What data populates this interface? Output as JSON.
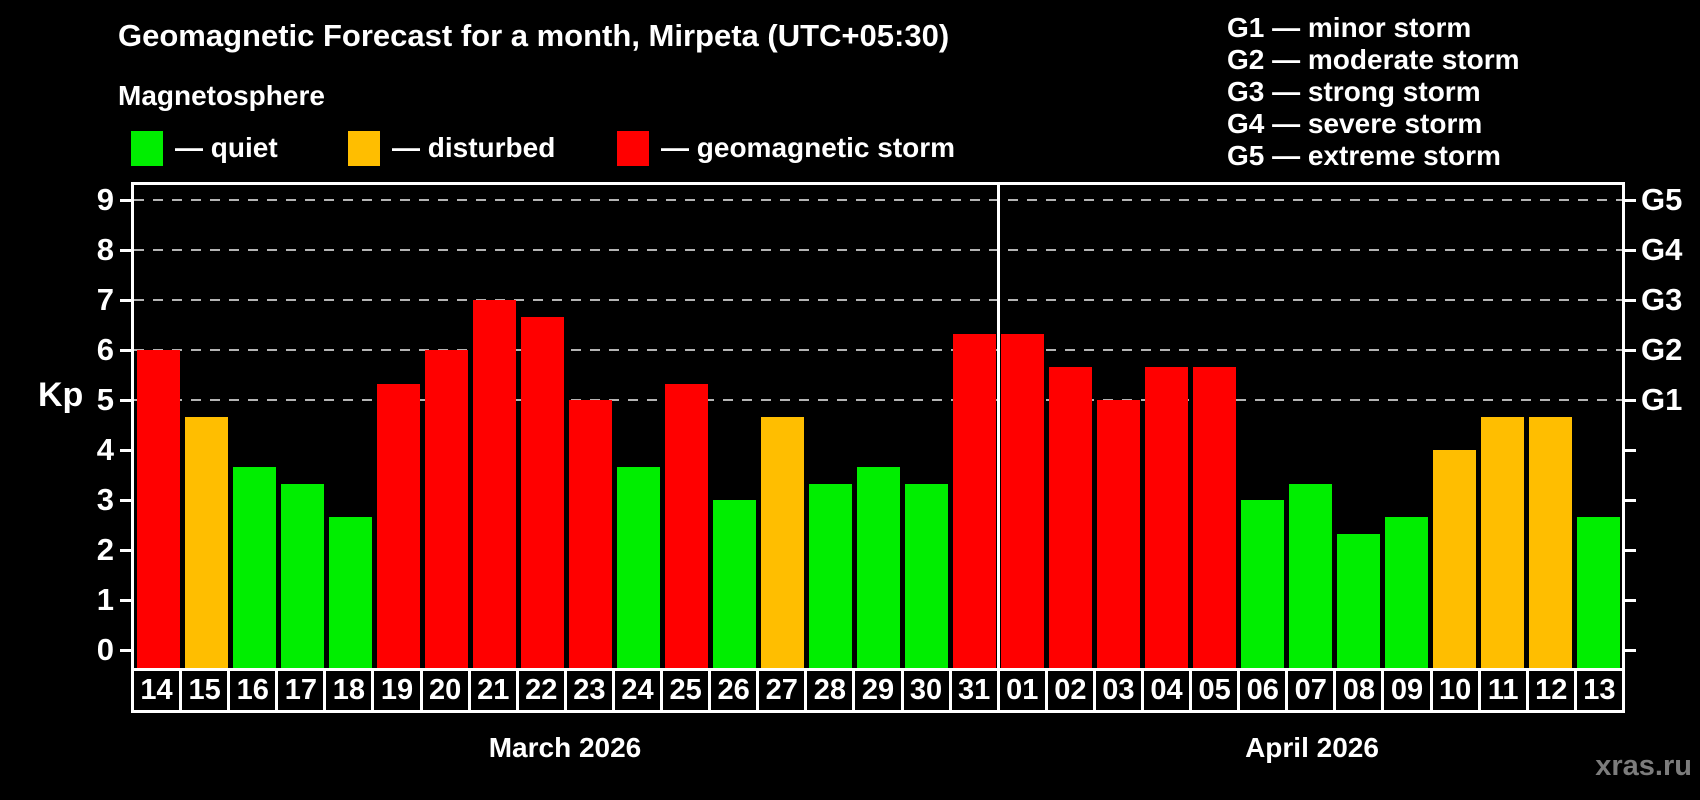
{
  "header": {
    "title": "Geomagnetic Forecast for a month, Mirpeta (UTC+05:30)",
    "subtitle": "Magnetosphere"
  },
  "legend": {
    "items": [
      {
        "label": "— quiet",
        "status": "quiet"
      },
      {
        "label": "— disturbed",
        "status": "disturbed"
      },
      {
        "label": "— geomagnetic storm",
        "status": "storm"
      }
    ]
  },
  "g_scale_legend": {
    "lines": [
      "G1 — minor storm",
      "G2 — moderate storm",
      "G3 — strong storm",
      "G4 — severe storm",
      "G5 — extreme storm"
    ]
  },
  "colors": {
    "quiet": "#00ee00",
    "disturbed": "#ffbe00",
    "storm": "#ff0000",
    "grid": "#b4b4b4",
    "frame": "#ffffff",
    "watermark": "#7c7c7c"
  },
  "chart_data": {
    "type": "bar",
    "ylabel": "Kp",
    "y_ticks": [
      0,
      1,
      2,
      3,
      4,
      5,
      6,
      7,
      8,
      9
    ],
    "ylim": [
      -0.36,
      9.36
    ],
    "gridlines_at_kp": [
      5,
      6,
      7,
      8,
      9
    ],
    "right_axis": [
      {
        "label": "G1",
        "kp": 5
      },
      {
        "label": "G2",
        "kp": 6
      },
      {
        "label": "G3",
        "kp": 7
      },
      {
        "label": "G4",
        "kp": 8
      },
      {
        "label": "G5",
        "kp": 9
      }
    ],
    "months": [
      {
        "label": "March 2026",
        "days": 18
      },
      {
        "label": "April 2026",
        "days": 13
      }
    ],
    "bars": [
      {
        "day": "14",
        "kp": 6.0,
        "status": "storm"
      },
      {
        "day": "15",
        "kp": 4.67,
        "status": "disturbed"
      },
      {
        "day": "16",
        "kp": 3.67,
        "status": "quiet"
      },
      {
        "day": "17",
        "kp": 3.33,
        "status": "quiet"
      },
      {
        "day": "18",
        "kp": 2.67,
        "status": "quiet"
      },
      {
        "day": "19",
        "kp": 5.33,
        "status": "storm"
      },
      {
        "day": "20",
        "kp": 6.0,
        "status": "storm"
      },
      {
        "day": "21",
        "kp": 7.0,
        "status": "storm"
      },
      {
        "day": "22",
        "kp": 6.67,
        "status": "storm"
      },
      {
        "day": "23",
        "kp": 5.0,
        "status": "storm"
      },
      {
        "day": "24",
        "kp": 3.67,
        "status": "quiet"
      },
      {
        "day": "25",
        "kp": 5.33,
        "status": "storm"
      },
      {
        "day": "26",
        "kp": 3.0,
        "status": "quiet"
      },
      {
        "day": "27",
        "kp": 4.67,
        "status": "disturbed"
      },
      {
        "day": "28",
        "kp": 3.33,
        "status": "quiet"
      },
      {
        "day": "29",
        "kp": 3.67,
        "status": "quiet"
      },
      {
        "day": "30",
        "kp": 3.33,
        "status": "quiet"
      },
      {
        "day": "31",
        "kp": 6.33,
        "status": "storm"
      },
      {
        "day": "01",
        "kp": 6.33,
        "status": "storm"
      },
      {
        "day": "02",
        "kp": 5.67,
        "status": "storm"
      },
      {
        "day": "03",
        "kp": 5.0,
        "status": "storm"
      },
      {
        "day": "04",
        "kp": 5.67,
        "status": "storm"
      },
      {
        "day": "05",
        "kp": 5.67,
        "status": "storm"
      },
      {
        "day": "06",
        "kp": 3.0,
        "status": "quiet"
      },
      {
        "day": "07",
        "kp": 3.33,
        "status": "quiet"
      },
      {
        "day": "08",
        "kp": 2.33,
        "status": "quiet"
      },
      {
        "day": "09",
        "kp": 2.67,
        "status": "quiet"
      },
      {
        "day": "10",
        "kp": 4.0,
        "status": "disturbed"
      },
      {
        "day": "11",
        "kp": 4.67,
        "status": "disturbed"
      },
      {
        "day": "12",
        "kp": 4.67,
        "status": "disturbed"
      },
      {
        "day": "13",
        "kp": 2.67,
        "status": "quiet"
      }
    ]
  },
  "watermark": "xras.ru"
}
